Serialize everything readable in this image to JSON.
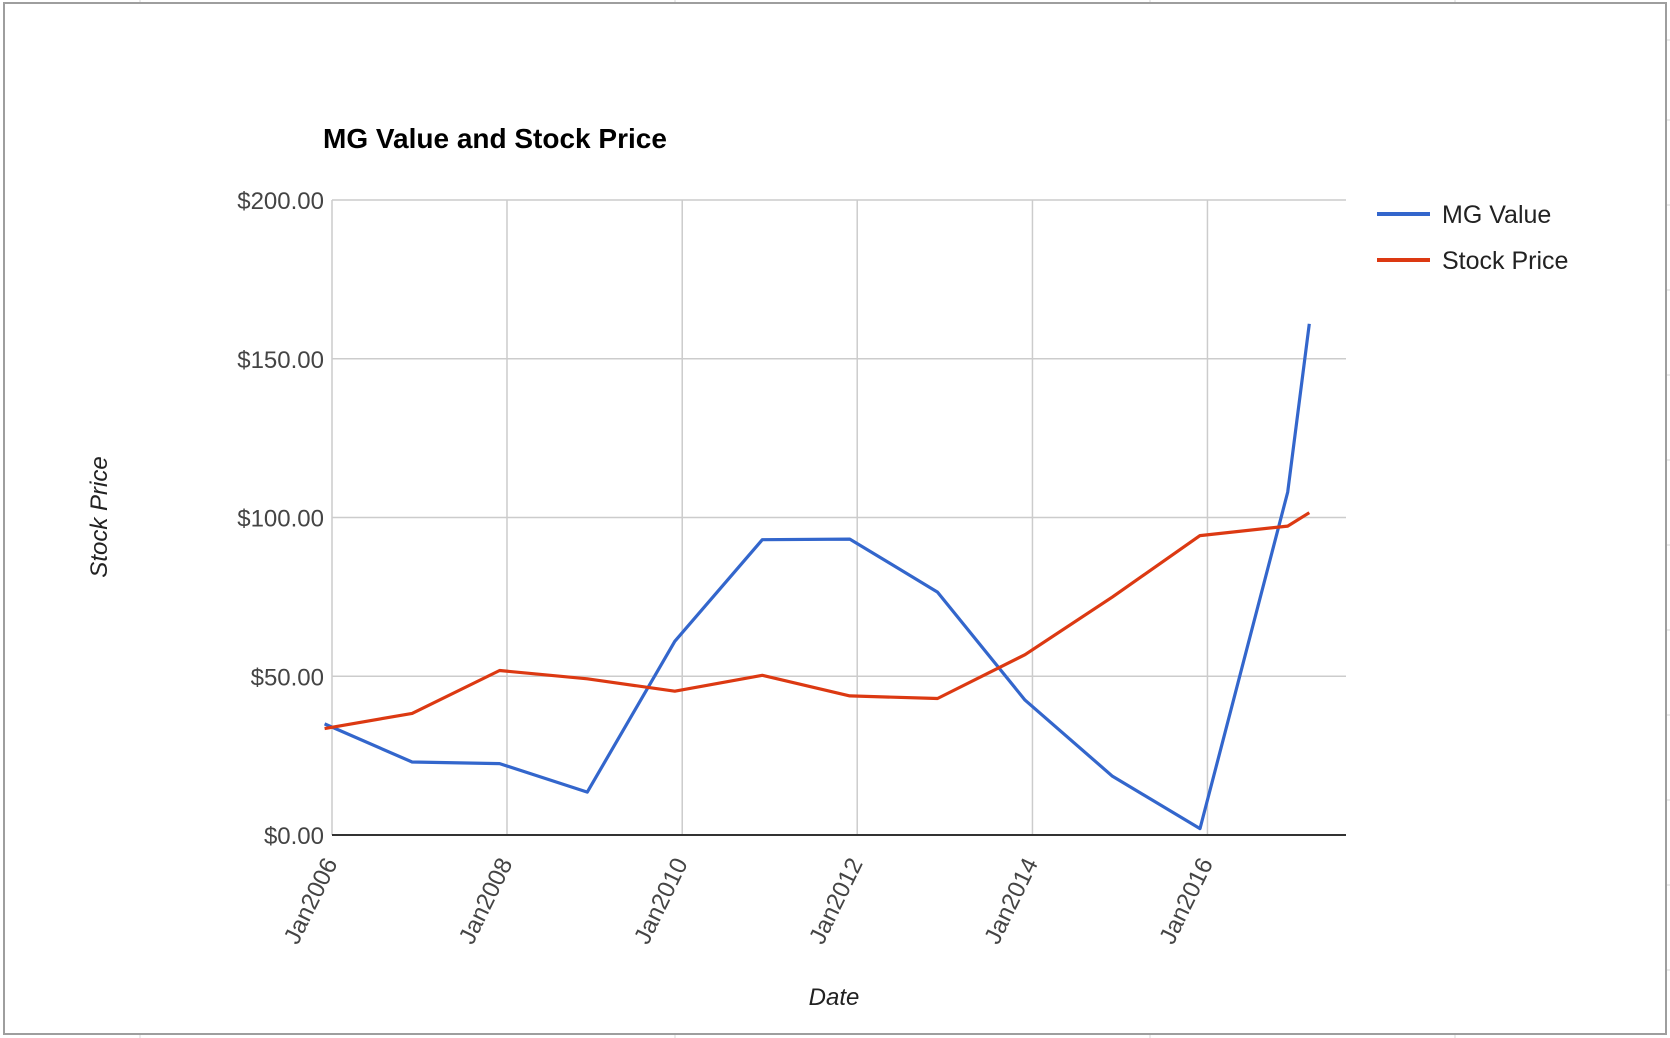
{
  "chart_data": {
    "type": "line",
    "title": "MG Value and Stock Price",
    "xlabel": "Date",
    "ylabel": "Stock Price",
    "ylim": [
      0,
      200
    ],
    "xlim": [
      "2006-01-01",
      "2017-08-01"
    ],
    "y_ticks": [
      "$0.00",
      "$50.00",
      "$100.00",
      "$150.00",
      "$200.00"
    ],
    "y_tick_values": [
      0,
      50,
      100,
      150,
      200
    ],
    "x_ticks": [
      "Jan2006",
      "Jan2008",
      "Jan2010",
      "Jan2012",
      "Jan2014",
      "Jan2016"
    ],
    "x_tick_values": [
      "2006-01-01",
      "2008-01-01",
      "2010-01-01",
      "2012-01-01",
      "2014-01-01",
      "2016-01-01"
    ],
    "grid": true,
    "legend_position": "right",
    "series": [
      {
        "name": "MG Value",
        "color": "#3366cc",
        "points": [
          {
            "x": "2005-12-01",
            "y": 35
          },
          {
            "x": "2006-12-01",
            "y": 23
          },
          {
            "x": "2007-12-01",
            "y": 22.5
          },
          {
            "x": "2008-12-01",
            "y": 13.5
          },
          {
            "x": "2009-12-01",
            "y": 61
          },
          {
            "x": "2010-12-01",
            "y": 93
          },
          {
            "x": "2011-12-01",
            "y": 93.2
          },
          {
            "x": "2012-12-01",
            "y": 76.5
          },
          {
            "x": "2013-12-01",
            "y": 42.5
          },
          {
            "x": "2014-12-01",
            "y": 18.5
          },
          {
            "x": "2015-12-01",
            "y": 2
          },
          {
            "x": "2016-12-01",
            "y": 108
          },
          {
            "x": "2017-03-01",
            "y": 161
          }
        ]
      },
      {
        "name": "Stock Price",
        "color": "#dc3912",
        "points": [
          {
            "x": "2005-12-01",
            "y": 33.5
          },
          {
            "x": "2006-12-01",
            "y": 38.3
          },
          {
            "x": "2007-12-01",
            "y": 51.8
          },
          {
            "x": "2008-12-01",
            "y": 49.2
          },
          {
            "x": "2009-12-01",
            "y": 45.3
          },
          {
            "x": "2010-12-01",
            "y": 50.3
          },
          {
            "x": "2011-12-01",
            "y": 43.8
          },
          {
            "x": "2012-12-01",
            "y": 43
          },
          {
            "x": "2013-12-01",
            "y": 56.8
          },
          {
            "x": "2014-12-01",
            "y": 75
          },
          {
            "x": "2015-12-01",
            "y": 94.3
          },
          {
            "x": "2016-12-01",
            "y": 97.3
          },
          {
            "x": "2017-03-01",
            "y": 101.5
          }
        ]
      }
    ]
  }
}
